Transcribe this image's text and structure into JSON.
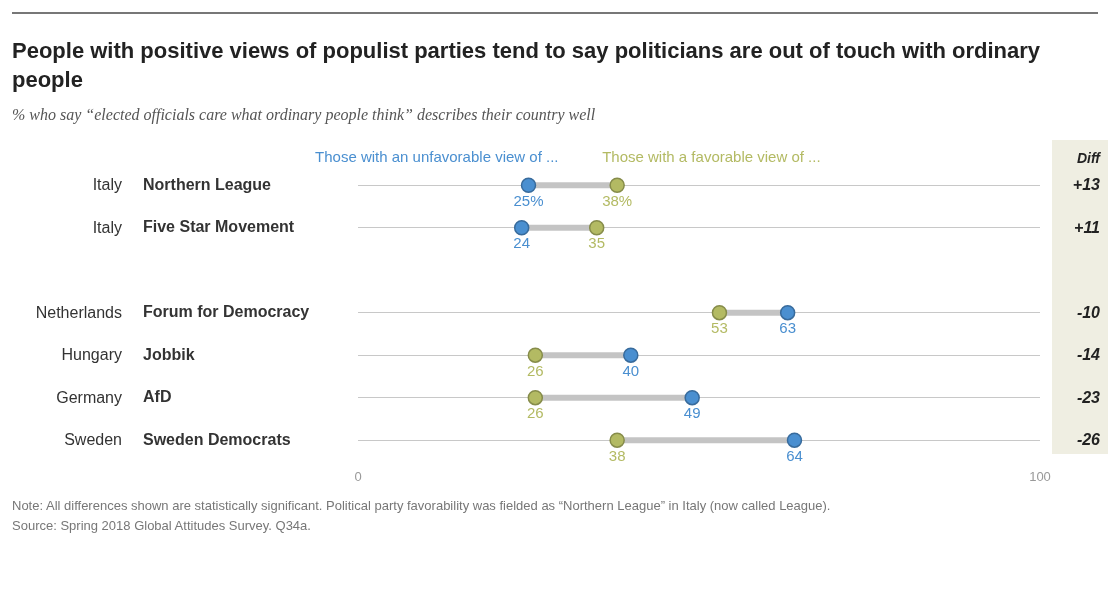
{
  "chart_data": {
    "type": "scatter",
    "orientation": "horizontal",
    "title": "People with positive views of populist parties tend to say politicians are out of touch with ordinary people",
    "subtitle": "% who say “elected officials care what ordinary people think” describes their country well",
    "categories": [
      "Northern League",
      "Five Star Movement",
      null,
      "Forum for Democracy",
      "Jobbik",
      "AfD",
      "Sweden Democrats"
    ],
    "series": [
      {
        "name": "Those with an unfavorable view of ...",
        "color": "#4a8fd0",
        "values": [
          25,
          24,
          null,
          63,
          40,
          49,
          64
        ],
        "value_labels": [
          "25%",
          "24",
          null,
          "63",
          "40",
          "49",
          "64"
        ]
      },
      {
        "name": "Those with a favorable view of ...",
        "color": "#b3ba63",
        "values": [
          38,
          35,
          null,
          53,
          26,
          26,
          38
        ],
        "value_labels": [
          "38%",
          "35",
          null,
          "53",
          "26",
          "26",
          "38"
        ]
      }
    ],
    "xlim": [
      0,
      100
    ],
    "xticks": [
      0,
      100
    ],
    "grid": "y",
    "marker": "circle",
    "annotations": [
      "Italy",
      "Italy",
      "Netherlands",
      "Hungary",
      "Germany",
      "Sweden",
      "Diff",
      "+13",
      "+11",
      "-10",
      "-14",
      "-23",
      "-26",
      "Note: All differences shown are statistically significant. Political party favorability was fielded as “Northern League” in Italy (now called League).",
      "Source: Spring 2018 Global Attitudes Survey. Q34a."
    ]
  }
}
